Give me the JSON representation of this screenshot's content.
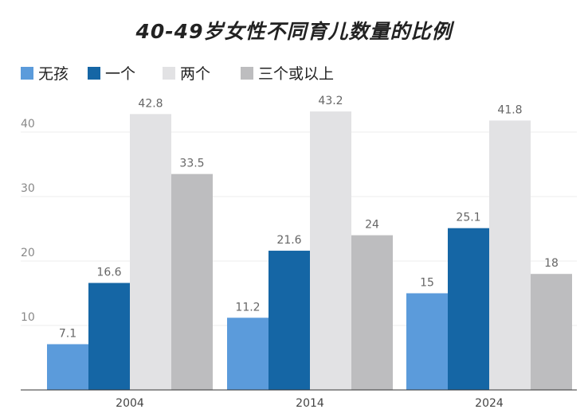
{
  "chart_data": {
    "type": "bar",
    "title": "40-49岁女性不同育儿数量的比例",
    "categories": [
      "2004",
      "2014",
      "2024"
    ],
    "series": [
      {
        "name": "无孩",
        "color": "#5b9bdb",
        "values": [
          7.1,
          11.2,
          15
        ]
      },
      {
        "name": "一个",
        "color": "#1566a5",
        "values": [
          16.6,
          21.6,
          25.1
        ]
      },
      {
        "name": "两个",
        "color": "#e2e2e4",
        "values": [
          42.8,
          43.2,
          41.8
        ]
      },
      {
        "name": "三个或以上",
        "color": "#bdbdbf",
        "values": [
          33.5,
          24,
          18
        ]
      }
    ],
    "ylim": [
      0,
      45
    ],
    "yticks": [
      10,
      20,
      30,
      40
    ],
    "grid": true,
    "legend_position": "top-left"
  }
}
